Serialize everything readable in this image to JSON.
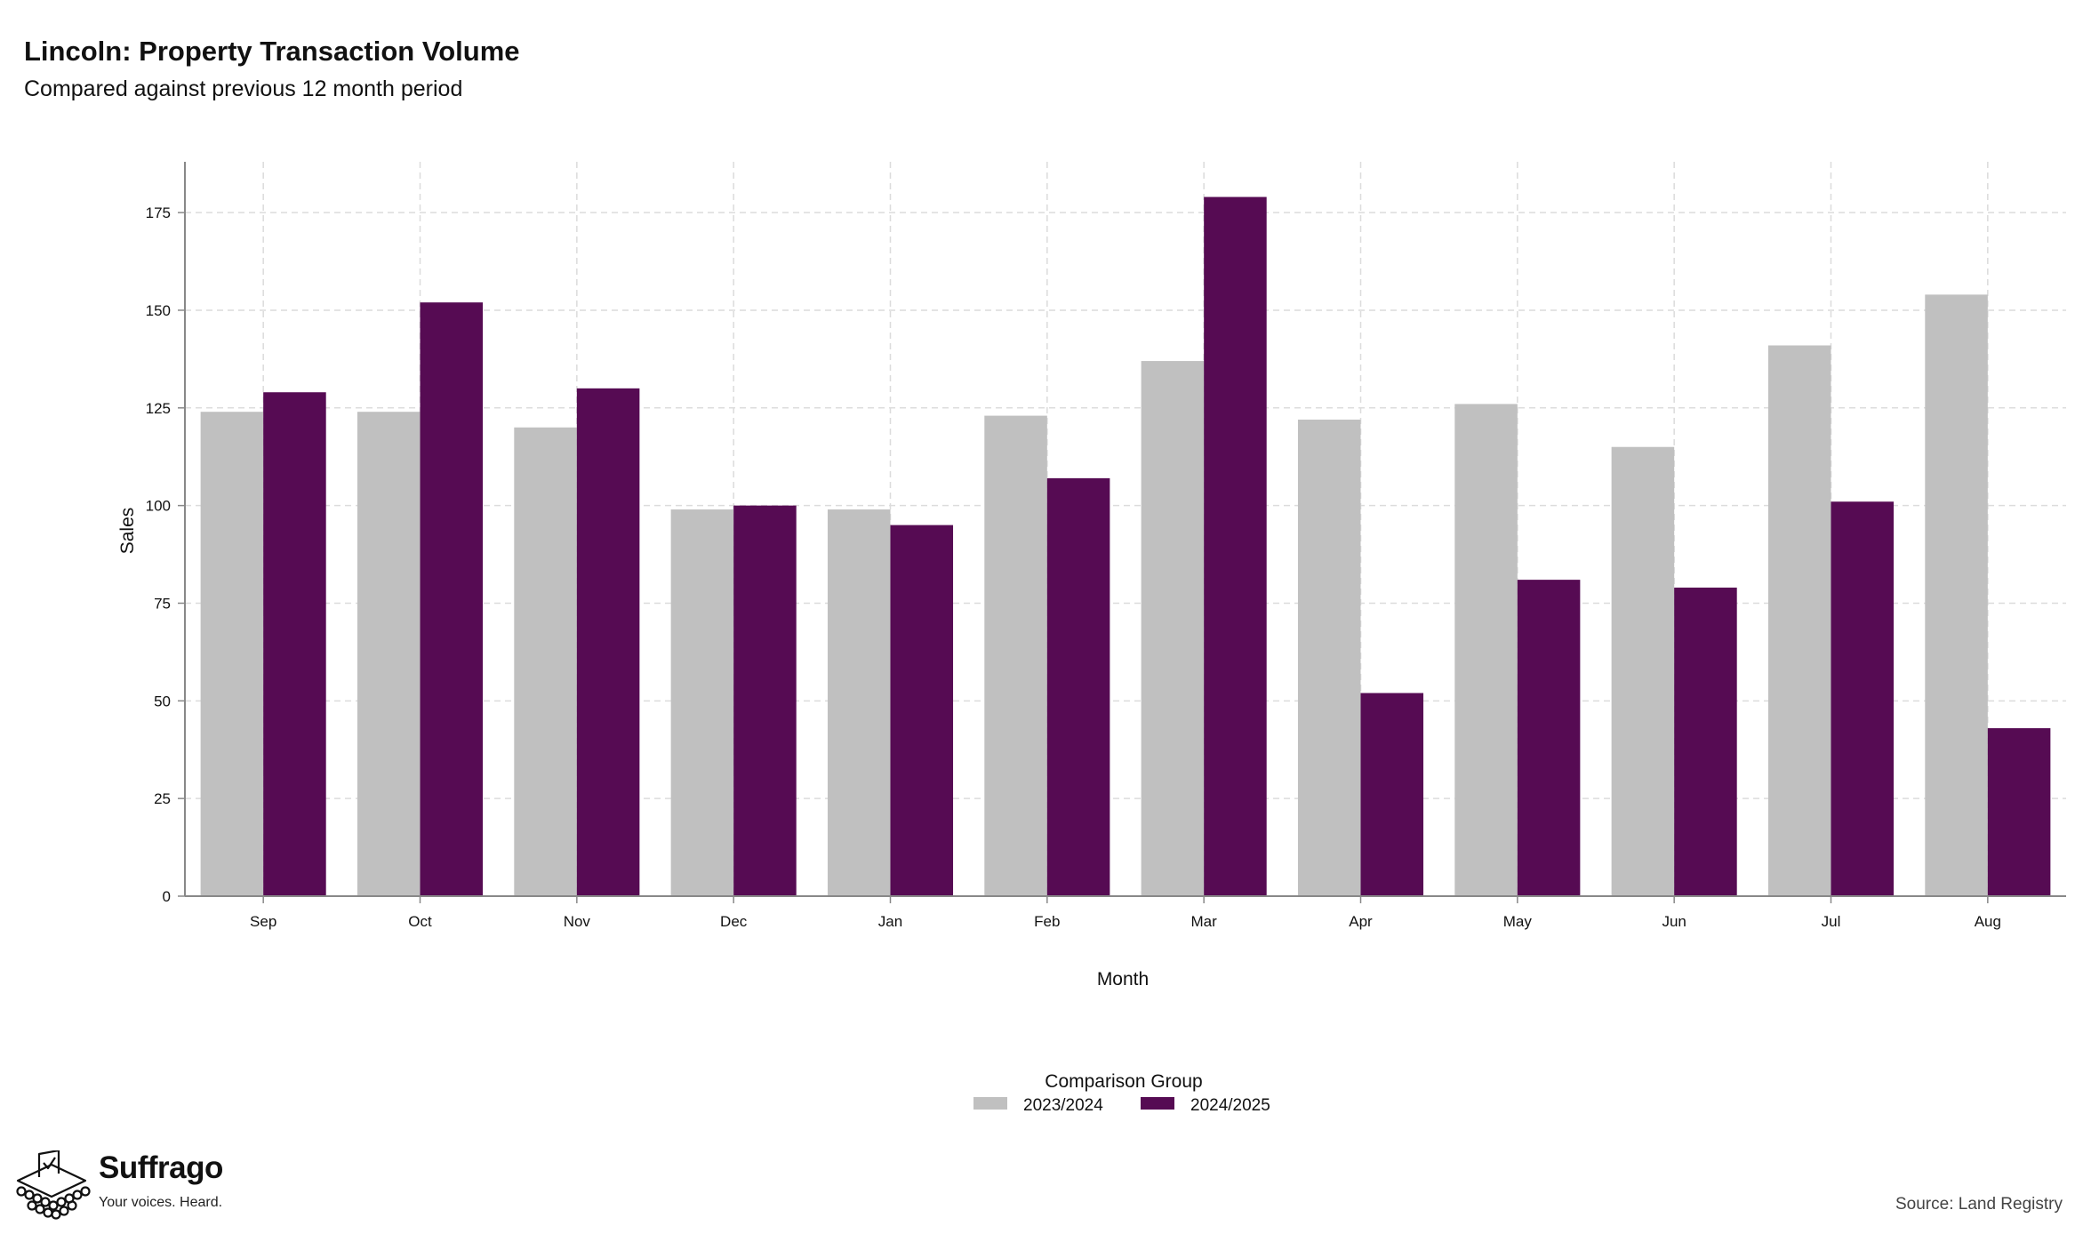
{
  "title": "Lincoln: Property Transaction Volume",
  "subtitle": "Compared against previous 12 month period",
  "source": "Source: Land Registry",
  "logo": {
    "name": "Suffrago",
    "tagline": "Your voices. Heard."
  },
  "colors": {
    "series_2023": "#c0c0c0",
    "series_2024": "#560b53",
    "grid": "#dcdcdc",
    "axis": "#888888"
  },
  "chart_data": {
    "type": "bar",
    "title": "Lincoln: Property Transaction Volume",
    "subtitle": "Compared against previous 12 month period",
    "xlabel": "Month",
    "ylabel": "Sales",
    "ylim": [
      0,
      188
    ],
    "yticks": [
      0,
      25,
      50,
      75,
      100,
      125,
      150,
      175
    ],
    "grid": true,
    "legend_title": "Comparison Group",
    "legend_position": "bottom",
    "categories": [
      "Sep",
      "Oct",
      "Nov",
      "Dec",
      "Jan",
      "Feb",
      "Mar",
      "Apr",
      "May",
      "Jun",
      "Jul",
      "Aug"
    ],
    "series": [
      {
        "name": "2023/2024",
        "color": "#c0c0c0",
        "values": [
          124,
          124,
          120,
          99,
          99,
          123,
          137,
          122,
          126,
          115,
          141,
          154
        ]
      },
      {
        "name": "2024/2025",
        "color": "#560b53",
        "values": [
          129,
          152,
          130,
          100,
          95,
          107,
          179,
          52,
          81,
          79,
          101,
          43
        ]
      }
    ]
  }
}
